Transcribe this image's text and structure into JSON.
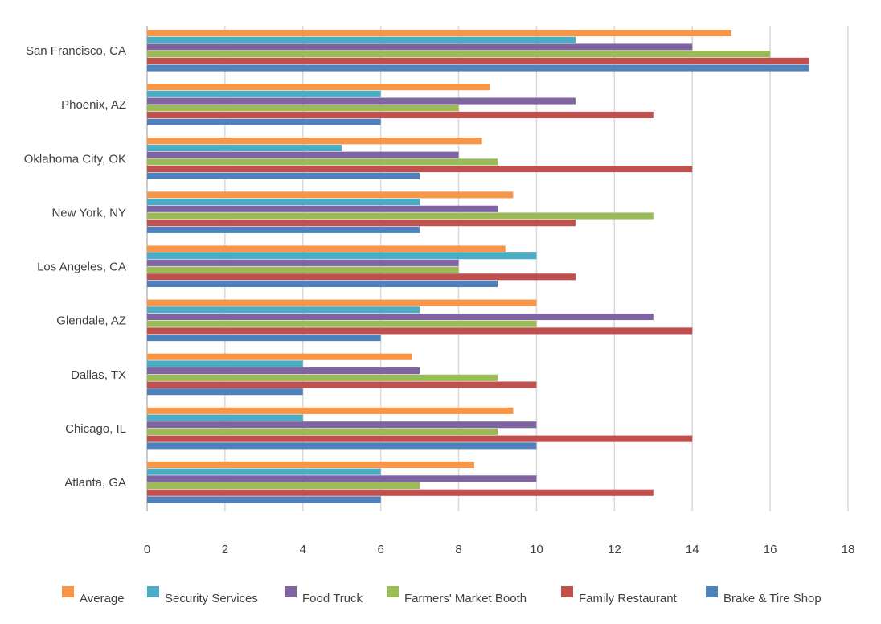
{
  "chart_data": {
    "type": "bar",
    "orientation": "horizontal",
    "title": "",
    "xlabel": "",
    "ylabel": "",
    "xlim": [
      0,
      18
    ],
    "x_ticks": [
      "0",
      "2",
      "4",
      "6",
      "8",
      "10",
      "12",
      "14",
      "16",
      "18"
    ],
    "grid": "vertical",
    "legend_position": "bottom",
    "categories": [
      "San Francisco, CA",
      "Phoenix, AZ",
      "Oklahoma City, OK",
      "New York, NY",
      "Los Angeles, CA",
      "Glendale, AZ",
      "Dallas, TX",
      "Chicago, IL",
      "Atlanta, GA"
    ],
    "series": [
      {
        "name": "Average",
        "color": "#F79646",
        "values": [
          15,
          8.8,
          8.6,
          9.4,
          9.2,
          10,
          6.8,
          9.4,
          8.4
        ]
      },
      {
        "name": "Security Services",
        "color": "#4BACC6",
        "values": [
          11,
          6,
          5,
          7,
          10,
          7,
          4,
          4,
          6
        ]
      },
      {
        "name": "Food Truck",
        "color": "#8064A2",
        "values": [
          14,
          11,
          8,
          9,
          8,
          13,
          7,
          10,
          10
        ]
      },
      {
        "name": "Farmers' Market Booth",
        "color": "#9BBB59",
        "values": [
          16,
          8,
          9,
          13,
          8,
          10,
          9,
          9,
          7
        ]
      },
      {
        "name": "Family Restaurant",
        "color": "#C0504D",
        "values": [
          17,
          13,
          14,
          11,
          11,
          14,
          10,
          14,
          13
        ]
      },
      {
        "name": "Brake & Tire Shop",
        "color": "#4F81BD",
        "values": [
          17,
          6,
          7,
          7,
          9,
          6,
          4,
          10,
          6
        ]
      }
    ]
  }
}
